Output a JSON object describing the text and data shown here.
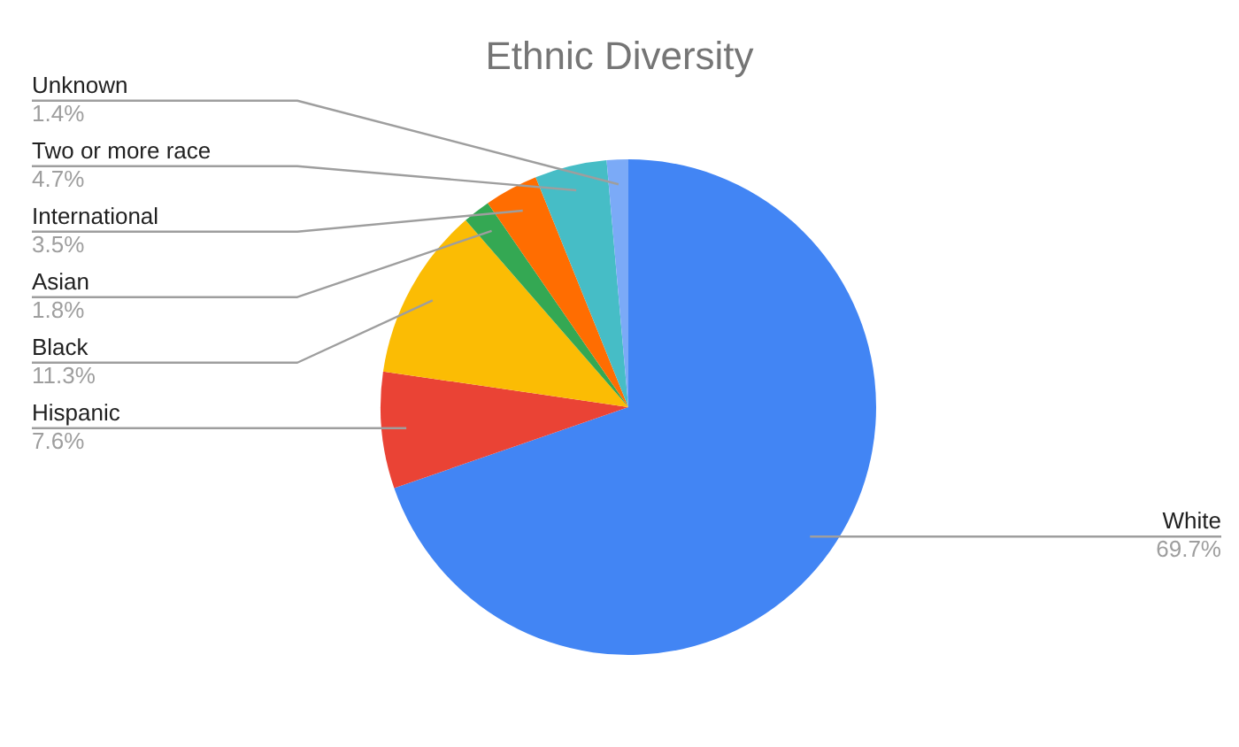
{
  "chart_data": {
    "type": "pie",
    "title": "Ethnic Diversity",
    "categories": [
      "White",
      "Hispanic",
      "Black",
      "Asian",
      "International",
      "Two or more race",
      "Unknown"
    ],
    "values": [
      69.7,
      7.6,
      11.3,
      1.8,
      3.5,
      4.7,
      1.4
    ],
    "colors": [
      "#4285f4",
      "#ea4335",
      "#fbbc04",
      "#34a853",
      "#ff6d01",
      "#46bdc6",
      "#7baaf7"
    ],
    "value_labels": [
      "69.7%",
      "7.6%",
      "11.3%",
      "1.8%",
      "3.5%",
      "4.7%",
      "1.4%"
    ]
  }
}
